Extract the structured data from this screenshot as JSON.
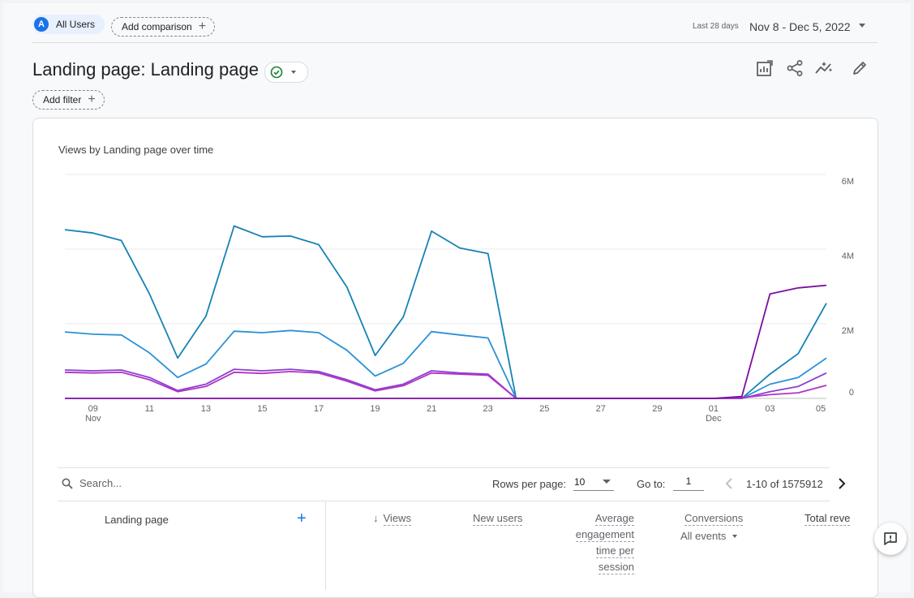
{
  "filters": {
    "segment_avatar": "A",
    "segment_label": "All Users",
    "add_comparison_label": "Add comparison",
    "add_filter_label": "Add filter",
    "plus": "+"
  },
  "date_range": {
    "label": "Last 28 days",
    "value": "Nov 8 - Dec 5, 2022"
  },
  "report": {
    "title": "Landing page: Landing page"
  },
  "toolbar": {
    "icons": [
      "customize-report-icon",
      "share-icon",
      "insights-icon",
      "edit-icon"
    ]
  },
  "chart_data": {
    "type": "line",
    "title": "Views by Landing page over time",
    "y_axis_side": "right",
    "ylim": [
      0,
      6000000
    ],
    "y_ticks": [
      "0",
      "2M",
      "4M",
      "6M"
    ],
    "x_tick_labels": [
      "09",
      "11",
      "13",
      "15",
      "17",
      "19",
      "21",
      "23",
      "25",
      "27",
      "29",
      "01",
      "03",
      "05"
    ],
    "x_month_labels": [
      {
        "at": "09",
        "label": "Nov"
      },
      {
        "at": "01",
        "label": "Dec"
      }
    ],
    "x": [
      "Nov 8",
      "Nov 9",
      "Nov 10",
      "Nov 11",
      "Nov 12",
      "Nov 13",
      "Nov 14",
      "Nov 15",
      "Nov 16",
      "Nov 17",
      "Nov 18",
      "Nov 19",
      "Nov 20",
      "Nov 21",
      "Nov 22",
      "Nov 23",
      "Nov 24",
      "Nov 25",
      "Nov 26",
      "Nov 27",
      "Nov 28",
      "Nov 29",
      "Nov 30",
      "Dec 1",
      "Dec 2",
      "Dec 3",
      "Dec 4",
      "Dec 5"
    ],
    "grid": true,
    "series": [
      {
        "color": "#1583b4",
        "values": [
          4520000,
          4430000,
          4230000,
          2800000,
          1080000,
          2200000,
          4620000,
          4330000,
          4350000,
          4120000,
          2980000,
          1150000,
          2180000,
          4480000,
          4030000,
          3880000,
          0,
          0,
          0,
          0,
          0,
          0,
          0,
          0,
          0,
          650000,
          1200000,
          2550000
        ]
      },
      {
        "color": "#2a91d6",
        "values": [
          1780000,
          1720000,
          1700000,
          1220000,
          560000,
          920000,
          1800000,
          1760000,
          1820000,
          1760000,
          1290000,
          600000,
          940000,
          1790000,
          1700000,
          1620000,
          0,
          0,
          0,
          0,
          0,
          0,
          0,
          0,
          0,
          380000,
          560000,
          1080000
        ]
      },
      {
        "color": "#8b3fd1",
        "values": [
          760000,
          740000,
          760000,
          560000,
          210000,
          380000,
          780000,
          740000,
          780000,
          720000,
          500000,
          230000,
          380000,
          740000,
          680000,
          650000,
          0,
          0,
          0,
          0,
          0,
          0,
          0,
          0,
          0,
          180000,
          320000,
          680000
        ]
      },
      {
        "color": "#b232c6",
        "values": [
          700000,
          680000,
          700000,
          500000,
          180000,
          320000,
          700000,
          670000,
          720000,
          680000,
          460000,
          200000,
          340000,
          680000,
          650000,
          620000,
          0,
          0,
          0,
          0,
          0,
          0,
          0,
          0,
          20000,
          100000,
          150000,
          350000
        ]
      },
      {
        "color": "#7b0fa0",
        "values": [
          0,
          0,
          0,
          0,
          0,
          0,
          0,
          0,
          0,
          0,
          0,
          0,
          0,
          0,
          0,
          0,
          0,
          0,
          0,
          0,
          0,
          0,
          0,
          0,
          50000,
          2800000,
          2960000,
          3030000
        ]
      }
    ]
  },
  "table_controls": {
    "search_placeholder": "Search...",
    "rows_per_page_label": "Rows per page:",
    "rows_per_page_value": "10",
    "goto_label": "Go to:",
    "goto_value": "1",
    "pagination_text": "1-10 of 1575912"
  },
  "table": {
    "dimension_header": "Landing page",
    "add_dimension": "+",
    "sort_arrow": "↓",
    "columns": {
      "views": "Views",
      "new_users": "New users",
      "avg_engagement": [
        "Average",
        "engagement",
        "time per",
        "session"
      ],
      "conversions": "Conversions",
      "conversions_sub": "All events",
      "total_revenue": "Total reve"
    }
  }
}
